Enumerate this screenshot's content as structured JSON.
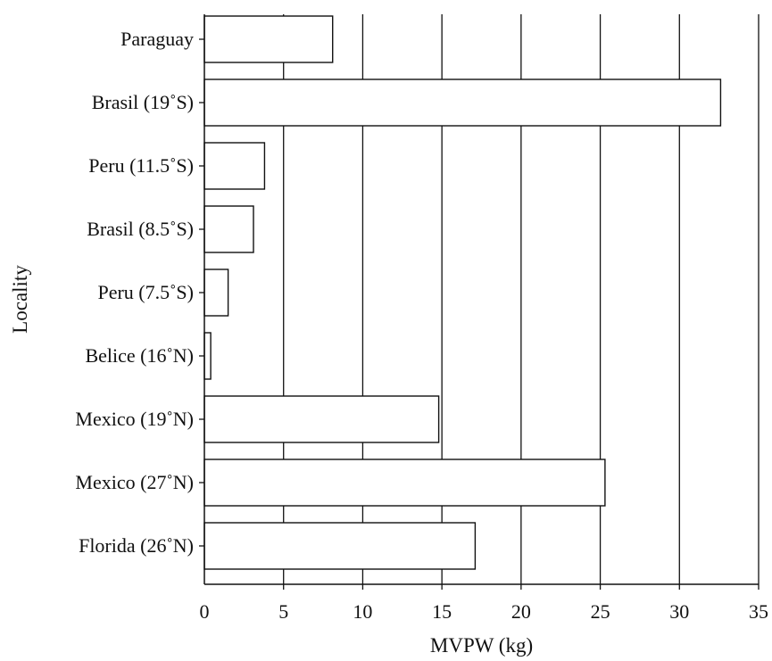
{
  "chart_data": {
    "type": "bar",
    "orientation": "horizontal",
    "categories": [
      "Paraguay",
      "Brasil (19˚S)",
      "Peru (11.5˚S)",
      "Brasil (8.5˚S)",
      "Peru (7.5˚S)",
      "Belice (16˚N)",
      "Mexico (19˚N)",
      "Mexico (27˚N)",
      "Florida (26˚N)"
    ],
    "values": [
      8.1,
      32.6,
      3.8,
      3.1,
      1.5,
      0.4,
      14.8,
      25.3,
      17.1
    ],
    "xlabel": "MVPW (kg)",
    "ylabel": "Locality",
    "xlim": [
      0,
      35
    ],
    "xticks": [
      "0",
      "5",
      "10",
      "15",
      "20",
      "25",
      "30",
      "35"
    ],
    "grid": "vertical",
    "colors": {
      "bar_fill": "#ffffff",
      "bar_stroke": "#111111",
      "grid": "#111111"
    }
  }
}
